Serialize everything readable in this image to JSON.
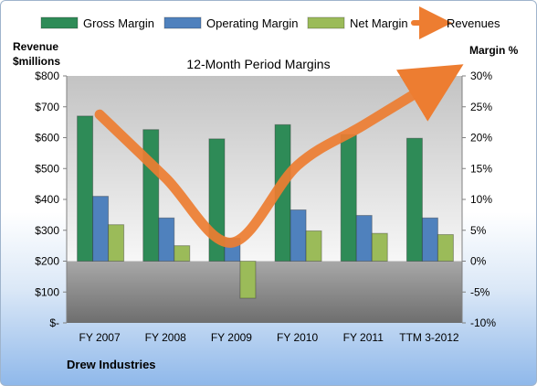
{
  "chart_data": {
    "type": "bar",
    "title": "12-Month Period Margins",
    "categories": [
      "FY 2007",
      "FY 2008",
      "FY 2009",
      "FY 2010",
      "FY 2011",
      "TTM 3-2012"
    ],
    "series": [
      {
        "name": "Gross Margin",
        "axis": "right",
        "color": "#2e8b57",
        "values": [
          23.5,
          21.3,
          19.8,
          22.1,
          20.5,
          19.9
        ]
      },
      {
        "name": "Operating Margin",
        "axis": "right",
        "color": "#4f81bd",
        "values": [
          10.5,
          7.0,
          3.7,
          8.3,
          7.4,
          7.0
        ]
      },
      {
        "name": "Net Margin",
        "axis": "right",
        "color": "#9bbb59",
        "values": [
          5.9,
          2.5,
          -6.0,
          4.9,
          4.5,
          4.3
        ]
      },
      {
        "name": "Revenues",
        "axis": "left",
        "type": "line",
        "color": "#ed7d31",
        "values": [
          675,
          470,
          260,
          510,
          640,
          770
        ]
      }
    ],
    "y_left": {
      "label_line1": "Revenue",
      "label_line2": "$millions",
      "range": [
        0,
        800
      ],
      "ticks": [
        "$-",
        "$100",
        "$200",
        "$300",
        "$400",
        "$500",
        "$600",
        "$700",
        "$800"
      ]
    },
    "y_right": {
      "label": "Margin %",
      "range": [
        -10,
        30
      ],
      "ticks": [
        "-10%",
        "-5%",
        "0%",
        "5%",
        "10%",
        "15%",
        "20%",
        "25%",
        "30%"
      ]
    },
    "legend_position": "top",
    "company": "Drew Industries"
  }
}
